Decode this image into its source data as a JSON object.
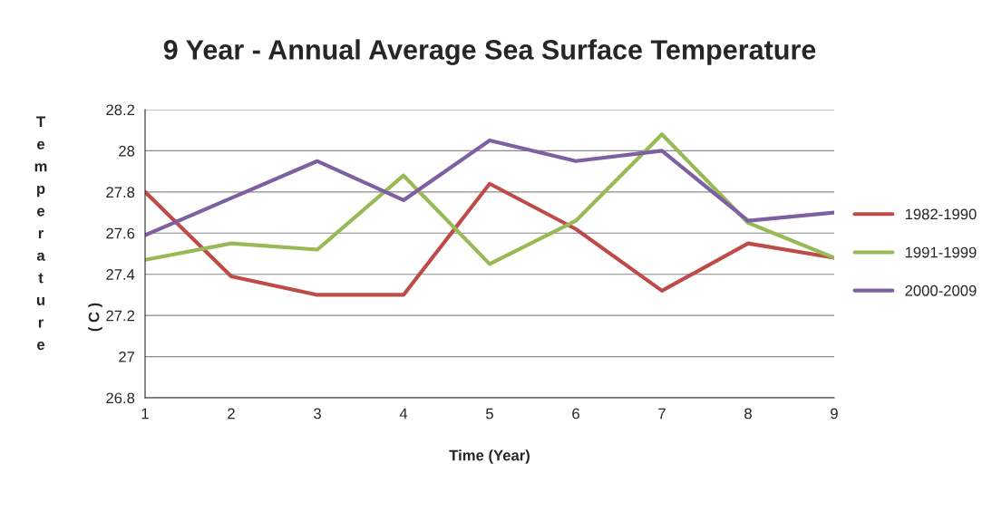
{
  "chart_data": {
    "type": "line",
    "title": "9 Year - Annual Average Sea Surface Temperature",
    "xlabel": "Time (Year)",
    "ylabel": "Temperature",
    "annotations": [
      "( C )"
    ],
    "categories": [
      "1",
      "2",
      "3",
      "4",
      "5",
      "6",
      "7",
      "8",
      "9"
    ],
    "series": [
      {
        "name": "1982-1990",
        "color": "#be4b48",
        "values": [
          27.8,
          27.39,
          27.3,
          27.3,
          27.84,
          27.62,
          27.32,
          27.55,
          27.48
        ]
      },
      {
        "name": "1991-1999",
        "color": "#98b954",
        "values": [
          27.47,
          27.55,
          27.52,
          27.88,
          27.45,
          27.66,
          28.08,
          27.65,
          27.48
        ]
      },
      {
        "name": "2000-2009",
        "color": "#7d60a0",
        "values": [
          27.59,
          27.77,
          27.95,
          27.76,
          28.05,
          27.95,
          28.0,
          27.66,
          27.7
        ]
      }
    ],
    "ylim": [
      26.8,
      28.2
    ],
    "yticks": [
      {
        "value": 26.8,
        "label": "26.8"
      },
      {
        "value": 27,
        "label": "27"
      },
      {
        "value": 27.2,
        "label": "27.2"
      },
      {
        "value": 27.4,
        "label": "27.4"
      },
      {
        "value": 27.6,
        "label": "27.6"
      },
      {
        "value": 27.8,
        "label": "27.8"
      },
      {
        "value": 28,
        "label": "28"
      },
      {
        "value": 28.2,
        "label": "28.2"
      }
    ],
    "grid": "y",
    "legend": "right",
    "marker": "none",
    "line_style": "solid"
  }
}
